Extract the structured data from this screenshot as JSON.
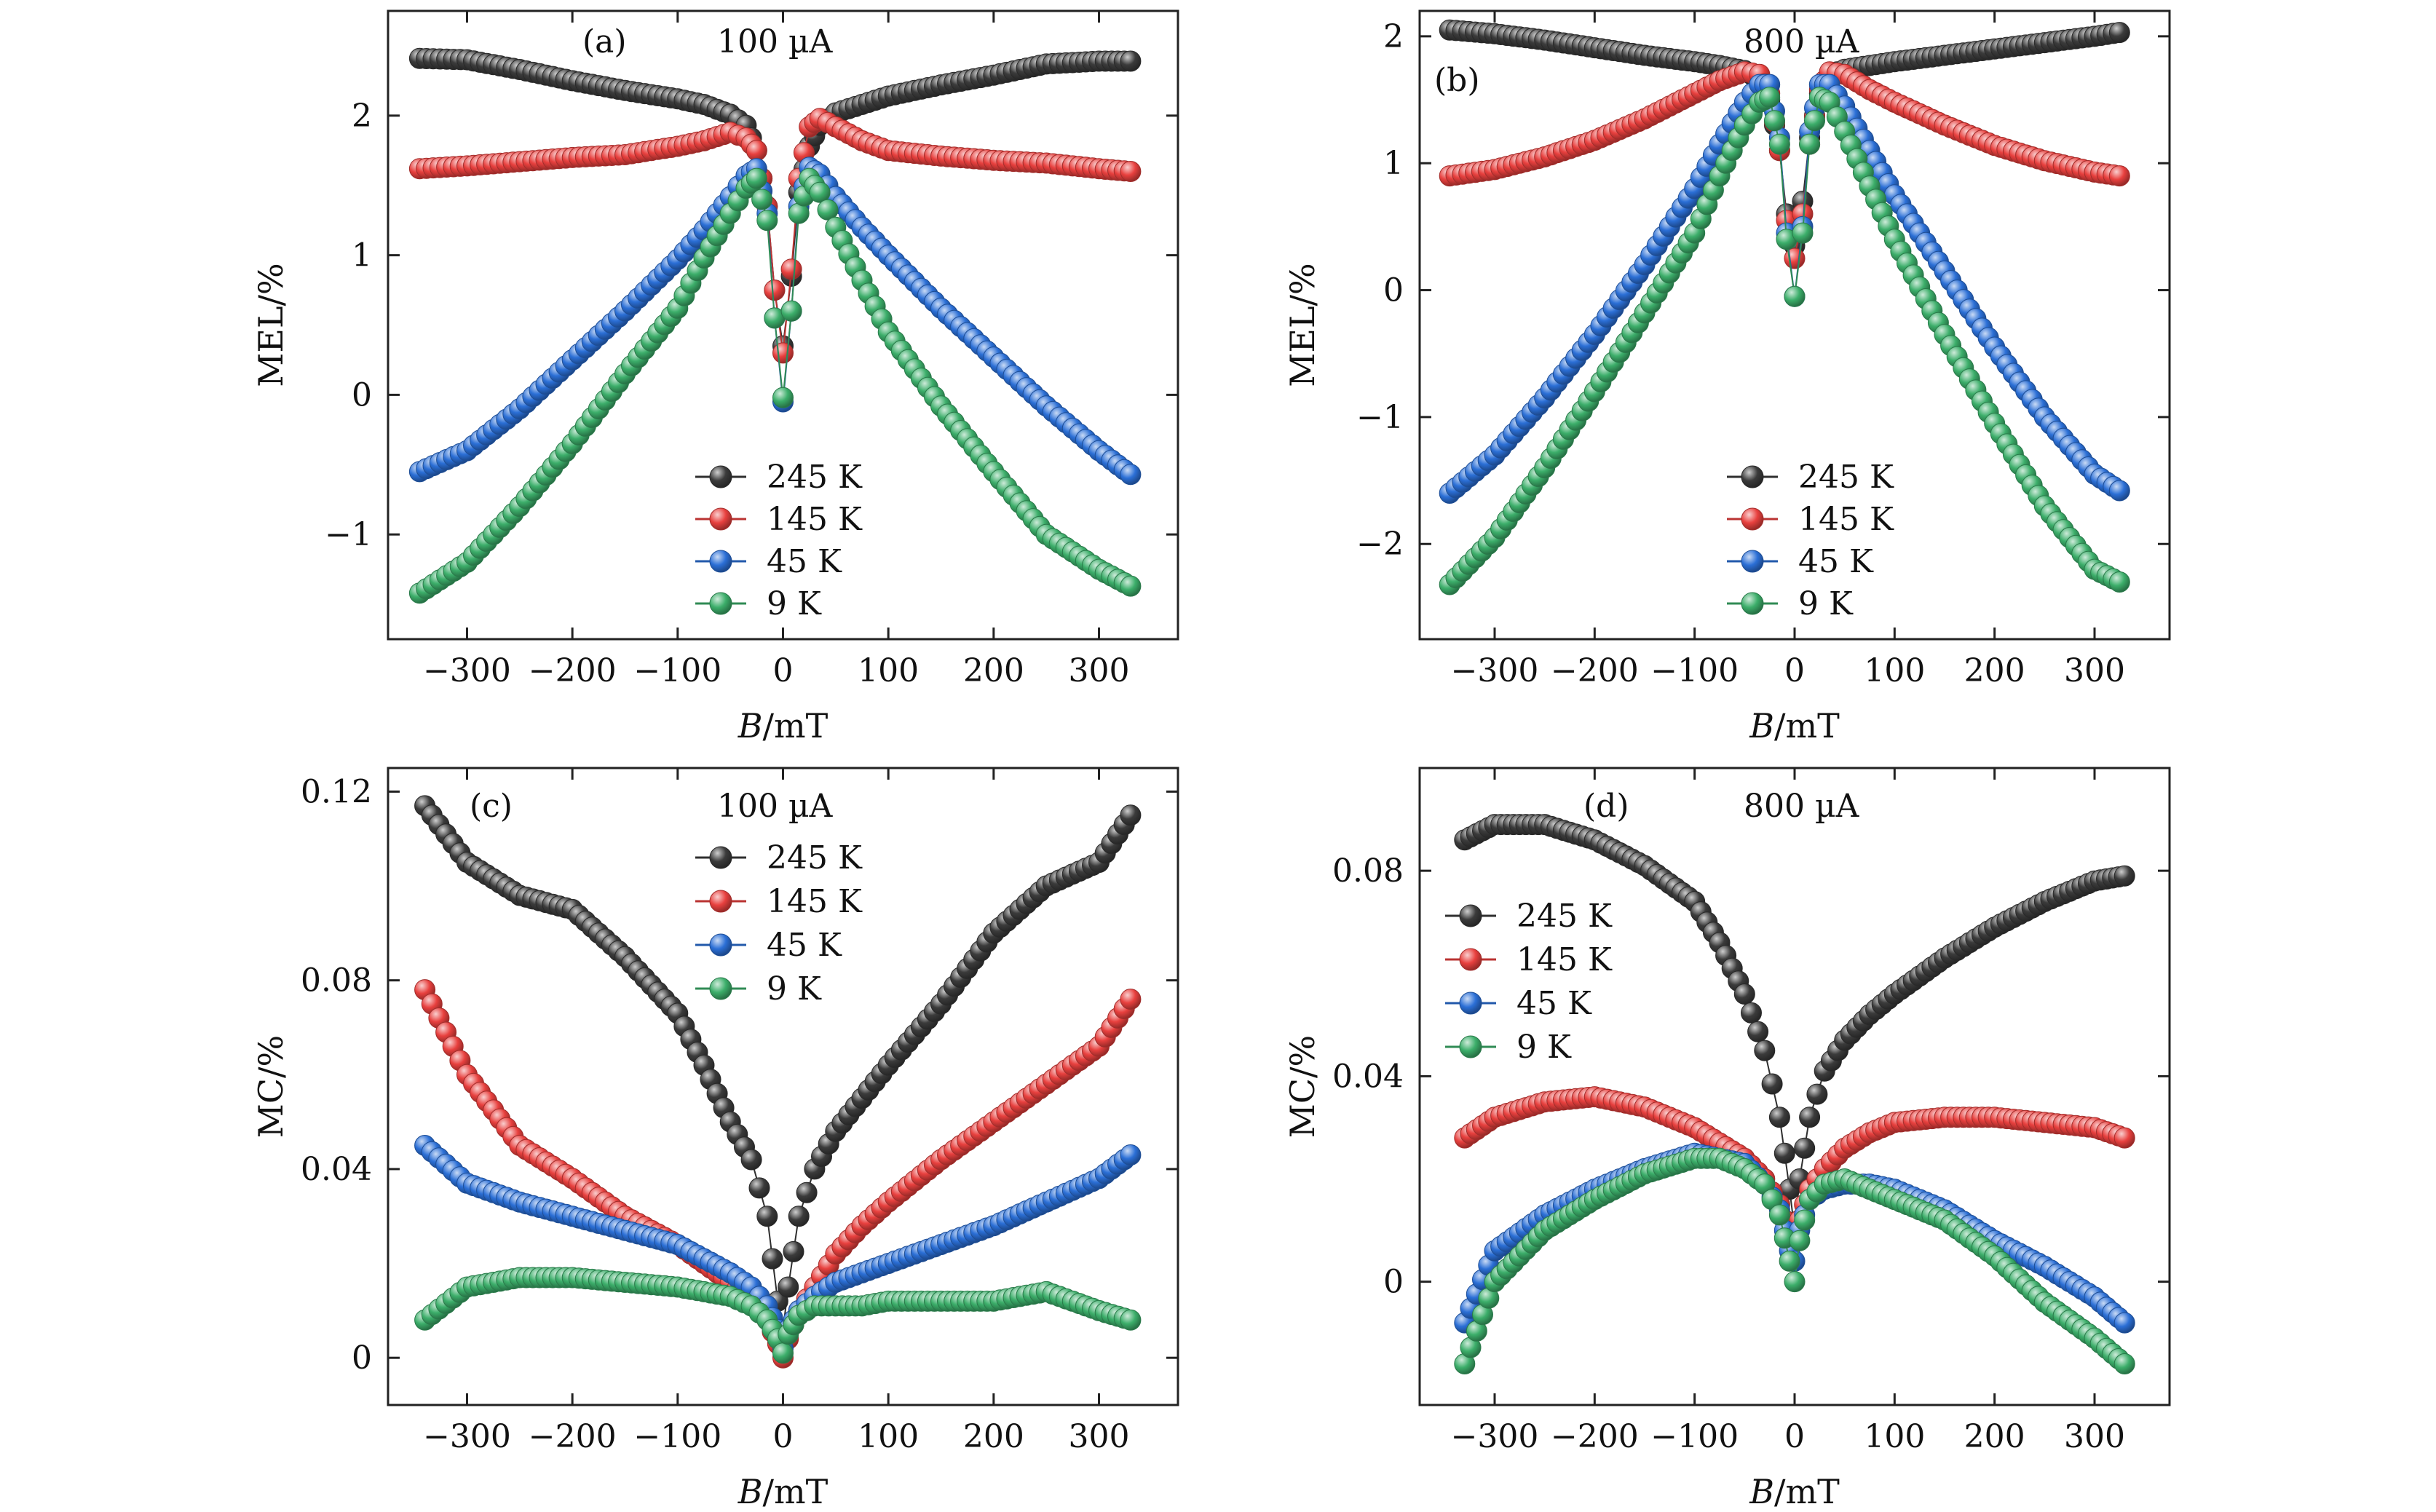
{
  "chart_data": [
    {
      "panel": "(a)",
      "type": "scatter",
      "subtitle": "100 µA",
      "xlabel": "B/mT",
      "ylabel": "MEL/%",
      "xlim": [
        -375,
        375
      ],
      "ylim": [
        -1.75,
        2.75
      ],
      "xticks": [
        -300,
        -200,
        -100,
        0,
        100,
        200,
        300
      ],
      "yticks": [
        -1,
        0,
        1,
        2
      ],
      "yticks_text": [
        "−1",
        "0",
        "1",
        "2"
      ],
      "legend": "lower-center",
      "x": [
        -345,
        -300,
        -250,
        -200,
        -150,
        -100,
        -75,
        -50,
        -35,
        -25,
        -15,
        -8,
        0,
        8,
        15,
        25,
        35,
        50,
        75,
        100,
        150,
        200,
        250,
        300,
        330
      ],
      "series": [
        {
          "name": "245 K",
          "color": "#3b3b3b",
          "values": [
            2.41,
            2.4,
            2.33,
            2.25,
            2.18,
            2.12,
            2.08,
            2.01,
            1.93,
            1.75,
            1.35,
            0.75,
            0.35,
            0.85,
            1.45,
            1.78,
            1.93,
            2.02,
            2.08,
            2.14,
            2.22,
            2.29,
            2.37,
            2.39,
            2.39
          ]
        },
        {
          "name": "145 K",
          "color": "#e8403e",
          "values": [
            1.62,
            1.64,
            1.67,
            1.7,
            1.72,
            1.78,
            1.82,
            1.88,
            1.84,
            1.75,
            1.35,
            0.75,
            0.3,
            0.9,
            1.55,
            1.92,
            1.98,
            1.92,
            1.82,
            1.75,
            1.71,
            1.68,
            1.66,
            1.62,
            1.6
          ]
        },
        {
          "name": "45 K",
          "color": "#2b6fd6",
          "values": [
            -0.55,
            -0.4,
            -0.1,
            0.25,
            0.6,
            0.97,
            1.18,
            1.42,
            1.57,
            1.62,
            1.3,
            0.55,
            -0.05,
            0.6,
            1.35,
            1.63,
            1.58,
            1.42,
            1.2,
            1.0,
            0.62,
            0.27,
            -0.08,
            -0.4,
            -0.57
          ]
        },
        {
          "name": "9 K",
          "color": "#3cae6a",
          "values": [
            -1.42,
            -1.2,
            -0.8,
            -0.35,
            0.15,
            0.62,
            0.98,
            1.3,
            1.48,
            1.55,
            1.25,
            0.55,
            -0.02,
            0.6,
            1.3,
            1.55,
            1.45,
            1.2,
            0.82,
            0.45,
            -0.08,
            -0.55,
            -1.0,
            -1.25,
            -1.37
          ]
        }
      ]
    },
    {
      "panel": "(b)",
      "type": "scatter",
      "subtitle": "800 µA",
      "xlabel": "B/mT",
      "ylabel": "MEL/%",
      "xlim": [
        -375,
        375
      ],
      "ylim": [
        -2.75,
        2.2
      ],
      "xticks": [
        -300,
        -200,
        -100,
        0,
        100,
        200,
        300
      ],
      "yticks": [
        -2,
        -1,
        0,
        1,
        2
      ],
      "yticks_text": [
        "−2",
        "−1",
        "0",
        "1",
        "2"
      ],
      "legend": "lower-center",
      "x": [
        -345,
        -300,
        -250,
        -200,
        -150,
        -100,
        -75,
        -50,
        -35,
        -25,
        -15,
        -8,
        0,
        8,
        15,
        25,
        35,
        50,
        75,
        100,
        150,
        200,
        250,
        300,
        325
      ],
      "series": [
        {
          "name": "245 K",
          "color": "#3b3b3b",
          "values": [
            2.05,
            2.02,
            1.97,
            1.91,
            1.85,
            1.8,
            1.77,
            1.73,
            1.66,
            1.5,
            1.1,
            0.6,
            0.35,
            0.7,
            1.2,
            1.55,
            1.7,
            1.74,
            1.77,
            1.8,
            1.85,
            1.9,
            1.95,
            2.0,
            2.03
          ]
        },
        {
          "name": "145 K",
          "color": "#e8403e",
          "values": [
            0.9,
            0.95,
            1.05,
            1.18,
            1.35,
            1.55,
            1.65,
            1.72,
            1.7,
            1.55,
            1.1,
            0.55,
            0.25,
            0.6,
            1.15,
            1.58,
            1.72,
            1.7,
            1.58,
            1.48,
            1.3,
            1.14,
            1.02,
            0.93,
            0.9
          ]
        },
        {
          "name": "45 K",
          "color": "#2b6fd6",
          "values": [
            -1.6,
            -1.3,
            -0.85,
            -0.35,
            0.2,
            0.8,
            1.15,
            1.48,
            1.62,
            1.62,
            1.2,
            0.45,
            -0.05,
            0.5,
            1.25,
            1.62,
            1.62,
            1.45,
            1.1,
            0.75,
            0.15,
            -0.45,
            -1.0,
            -1.45,
            -1.58
          ]
        },
        {
          "name": "9 K",
          "color": "#3cae6a",
          "values": [
            -2.32,
            -1.95,
            -1.4,
            -0.8,
            -0.18,
            0.45,
            0.9,
            1.3,
            1.48,
            1.52,
            1.15,
            0.4,
            -0.05,
            0.45,
            1.15,
            1.52,
            1.48,
            1.25,
            0.82,
            0.4,
            -0.35,
            -1.05,
            -1.7,
            -2.2,
            -2.3
          ]
        }
      ]
    },
    {
      "panel": "(c)",
      "type": "scatter",
      "subtitle": "100 µA",
      "xlabel": "B/mT",
      "ylabel": "MC/%",
      "xlim": [
        -375,
        375
      ],
      "ylim": [
        -0.01,
        0.125
      ],
      "xticks": [
        -300,
        -200,
        -100,
        0,
        100,
        200,
        300
      ],
      "yticks": [
        0,
        0.04,
        0.08,
        0.12
      ],
      "yticks_text": [
        "0",
        "0.04",
        "0.08",
        "0.12"
      ],
      "legend": "upper-center",
      "x": [
        -340,
        -300,
        -250,
        -200,
        -150,
        -100,
        -75,
        -50,
        -30,
        -15,
        -5,
        0,
        5,
        15,
        30,
        50,
        75,
        100,
        150,
        200,
        250,
        300,
        330
      ],
      "series": [
        {
          "name": "245 K",
          "color": "#3b3b3b",
          "values": [
            0.117,
            0.105,
            0.098,
            0.095,
            0.085,
            0.073,
            0.062,
            0.05,
            0.042,
            0.03,
            0.012,
            0.006,
            0.015,
            0.03,
            0.04,
            0.048,
            0.055,
            0.062,
            0.075,
            0.09,
            0.1,
            0.105,
            0.115
          ]
        },
        {
          "name": "145 K",
          "color": "#e8403e",
          "values": [
            0.078,
            0.06,
            0.045,
            0.038,
            0.03,
            0.024,
            0.02,
            0.016,
            0.012,
            0.008,
            0.003,
            0.0,
            0.004,
            0.01,
            0.015,
            0.022,
            0.028,
            0.033,
            0.042,
            0.05,
            0.058,
            0.066,
            0.076
          ]
        },
        {
          "name": "45 K",
          "color": "#2b6fd6",
          "values": [
            0.045,
            0.037,
            0.033,
            0.03,
            0.027,
            0.024,
            0.021,
            0.018,
            0.015,
            0.011,
            0.006,
            0.002,
            0.006,
            0.01,
            0.013,
            0.016,
            0.018,
            0.02,
            0.024,
            0.028,
            0.033,
            0.038,
            0.043
          ]
        },
        {
          "name": "9 K",
          "color": "#3cae6a",
          "values": [
            0.008,
            0.015,
            0.017,
            0.017,
            0.016,
            0.015,
            0.014,
            0.013,
            0.011,
            0.008,
            0.004,
            0.001,
            0.005,
            0.009,
            0.011,
            0.011,
            0.011,
            0.012,
            0.012,
            0.012,
            0.014,
            0.01,
            0.008
          ]
        }
      ]
    },
    {
      "panel": "(d)",
      "type": "scatter",
      "subtitle": "800 µA",
      "xlabel": "B/mT",
      "ylabel": "MC/%",
      "xlim": [
        -375,
        375
      ],
      "ylim": [
        -0.024,
        0.1
      ],
      "xticks": [
        -300,
        -200,
        -100,
        0,
        100,
        200,
        300
      ],
      "yticks": [
        0,
        0.04,
        0.08
      ],
      "yticks_text": [
        "0",
        "0.04",
        "0.08"
      ],
      "legend": "upper-left",
      "x": [
        -330,
        -300,
        -250,
        -200,
        -150,
        -100,
        -75,
        -50,
        -30,
        -15,
        -5,
        0,
        5,
        15,
        30,
        50,
        75,
        100,
        150,
        200,
        250,
        300,
        330
      ],
      "series": [
        {
          "name": "245 K",
          "color": "#3b3b3b",
          "values": [
            0.086,
            0.089,
            0.089,
            0.086,
            0.081,
            0.074,
            0.066,
            0.056,
            0.045,
            0.032,
            0.018,
            0.01,
            0.02,
            0.032,
            0.041,
            0.047,
            0.052,
            0.056,
            0.063,
            0.069,
            0.074,
            0.078,
            0.079
          ]
        },
        {
          "name": "145 K",
          "color": "#e8403e",
          "values": [
            0.028,
            0.032,
            0.035,
            0.036,
            0.034,
            0.03,
            0.027,
            0.024,
            0.02,
            0.015,
            0.009,
            0.008,
            0.012,
            0.018,
            0.022,
            0.026,
            0.029,
            0.031,
            0.032,
            0.032,
            0.031,
            0.03,
            0.028
          ]
        },
        {
          "name": "45 K",
          "color": "#2b6fd6",
          "values": [
            -0.008,
            0.006,
            0.013,
            0.018,
            0.022,
            0.025,
            0.024,
            0.023,
            0.019,
            0.014,
            0.006,
            0.004,
            0.01,
            0.016,
            0.018,
            0.019,
            0.019,
            0.018,
            0.014,
            0.008,
            0.003,
            -0.003,
            -0.008
          ]
        },
        {
          "name": "9 K",
          "color": "#3cae6a",
          "values": [
            -0.016,
            0.0,
            0.01,
            0.016,
            0.021,
            0.024,
            0.024,
            0.022,
            0.019,
            0.013,
            0.004,
            0.0,
            0.008,
            0.016,
            0.019,
            0.02,
            0.018,
            0.016,
            0.012,
            0.005,
            -0.004,
            -0.011,
            -0.016
          ]
        }
      ]
    }
  ]
}
